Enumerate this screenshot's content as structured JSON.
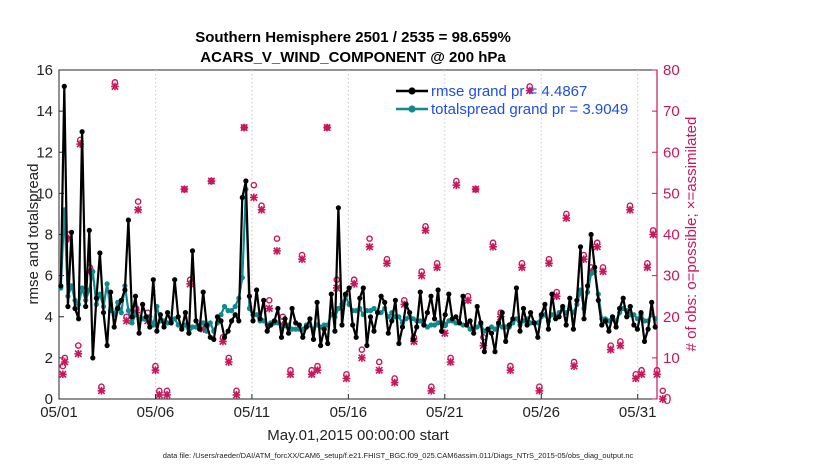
{
  "chart_data": {
    "type": "line",
    "title": "Southern Hemisphere 2501 / 2535 = 98.659%",
    "subtitle": "ACARS_V_WIND_COMPONENT @ 200 hPa",
    "xlabel": "May.01,2015 00:00:00 start",
    "ylabel": "rmse and totalspread",
    "ylabel_right": "# of obs: o=possible; ×=assimilated",
    "footnote": "data file: /Users/raeder/DAI/ATM_forcXX/CAM6_setup/f.e21.FHIST_BGC.f09_025.CAM6assim.011/Diags_NTrS_2015-05/obs_diag_output.nc",
    "x_ticks": [
      "05/01",
      "05/06",
      "05/11",
      "05/16",
      "05/21",
      "05/26",
      "05/31"
    ],
    "xlim": [
      0,
      31
    ],
    "ylim": [
      0,
      16
    ],
    "y_ticks": [
      "0",
      "2",
      "4",
      "6",
      "8",
      "10",
      "12",
      "14",
      "16"
    ],
    "ylim_right": [
      0,
      80
    ],
    "y_ticks_right": [
      "0",
      "10",
      "20",
      "30",
      "40",
      "50",
      "60",
      "70",
      "80"
    ],
    "colors": {
      "rmse": "#000000",
      "spread": "#0f8a8e",
      "obs": "#c8175d",
      "legend_text": "#1f4fe0"
    },
    "series": [
      {
        "name": "rmse grand pr = 4.4867",
        "values": [
          5.5,
          15.2,
          4.5,
          8.1,
          4.4,
          3.9,
          13.0,
          4.5,
          8.2,
          2.0,
          4.9,
          7.1,
          4.2,
          2.6,
          5.2,
          3.5,
          4.4,
          4.8,
          5.3,
          8.7,
          4.0,
          5.0,
          3.2,
          4.6,
          4.0,
          3.5,
          5.8,
          3.3,
          4.1,
          3.5,
          4.2,
          3.7,
          5.8,
          4.0,
          3.4,
          4.2,
          3.2,
          7.2,
          3.8,
          3.4,
          5.2,
          3.6,
          3.0,
          2.9,
          4.0,
          3.8,
          3.0,
          3.3,
          3.8,
          4.1,
          3.8,
          9.8,
          10.6,
          5.0,
          3.8,
          5.3,
          3.9,
          4.8,
          3.3,
          3.6,
          3.8,
          4.4,
          3.0,
          3.9,
          3.2,
          4.4,
          3.7,
          3.6,
          3.0,
          3.5,
          3.9,
          2.9,
          4.7,
          2.6,
          3.4,
          2.7,
          5.1,
          3.3,
          9.3,
          3.6,
          5.1,
          5.4,
          3.6,
          3.0,
          4.9,
          5.4,
          2.6,
          4.0,
          3.3,
          4.2,
          5.0,
          4.7,
          3.2,
          3.8,
          4.8,
          2.7,
          3.5,
          4.6,
          4.2,
          2.9,
          3.5,
          5.2,
          3.6,
          4.2,
          5.0,
          3.9,
          5.3,
          3.3,
          4.1,
          5.1,
          3.9,
          4.0,
          3.7,
          5.0,
          3.6,
          3.8,
          3.2,
          4.5,
          3.7,
          2.3,
          3.4,
          3.2,
          2.3,
          3.7,
          4.2,
          2.8,
          3.6,
          3.9,
          5.4,
          3.3,
          4.4,
          3.6,
          4.2,
          3.7,
          3.0,
          4.1,
          4.6,
          3.4,
          5.1,
          3.9,
          4.0,
          4.5,
          3.6,
          4.9,
          3.4,
          4.8,
          7.4,
          3.9,
          5.5,
          8.0,
          6.4,
          4.8,
          3.6,
          3.8,
          3.3,
          4.0,
          3.5,
          4.4,
          4.9,
          4.0,
          4.5,
          3.6,
          3.4,
          4.2,
          2.8,
          3.4,
          4.7,
          3.5
        ]
      },
      {
        "name": "totalspread grand pr = 3.9049",
        "values": [
          5.4,
          9.2,
          5.0,
          5.5,
          4.8,
          4.6,
          5.4,
          4.8,
          5.3,
          6.2,
          4.6,
          5.1,
          4.5,
          5.6,
          4.3,
          4.1,
          4.7,
          4.2,
          5.5,
          4.3,
          3.7,
          4.1,
          3.9,
          3.9,
          3.9,
          4.0,
          3.6,
          4.5,
          3.8,
          3.8,
          3.7,
          3.7,
          3.9,
          3.6,
          3.5,
          3.6,
          3.2,
          3.5,
          3.5,
          3.6,
          3.7,
          3.3,
          3.7,
          3.3,
          3.7,
          4.1,
          4.5,
          4.3,
          4.3,
          4.5,
          4.9,
          5.9,
          10.2,
          4.4,
          4.1,
          4.1,
          3.8,
          3.8,
          3.6,
          3.7,
          3.7,
          3.7,
          3.5,
          3.6,
          3.6,
          3.4,
          3.4,
          3.4,
          3.4,
          3.6,
          3.6,
          3.4,
          3.6,
          3.5,
          3.6,
          3.6,
          4.1,
          4.0,
          4.4,
          4.6,
          5.0,
          4.6,
          4.3,
          4.3,
          4.4,
          4.1,
          4.3,
          4.3,
          4.4,
          4.2,
          4.2,
          4.4,
          4.0,
          4.2,
          4.0,
          4.0,
          3.7,
          3.9,
          4.0,
          3.9,
          3.8,
          3.8,
          3.6,
          3.5,
          3.6,
          3.6,
          3.7,
          3.7,
          3.6,
          3.8,
          3.8,
          3.7,
          3.7,
          3.6,
          3.6,
          3.4,
          3.4,
          3.5,
          3.6,
          3.3,
          3.4,
          3.5,
          3.4,
          3.6,
          3.5,
          3.5,
          3.5,
          3.7,
          3.9,
          3.6,
          3.8,
          3.9,
          3.7,
          3.7,
          3.7,
          4.0,
          4.1,
          3.8,
          4.1,
          4.0,
          4.2,
          4.4,
          4.2,
          4.4,
          4.2,
          4.6,
          5.3,
          4.4,
          5.2,
          6.1,
          6.2,
          5.1,
          3.9,
          3.9,
          3.8,
          4.0,
          3.8,
          4.2,
          4.4,
          4.3,
          4.1,
          4.1,
          3.9,
          4.1,
          3.8,
          3.8,
          4.1,
          3.9
        ]
      }
    ],
    "obs_possible": [
      [
        0.2,
        8
      ],
      [
        0.3,
        10
      ],
      [
        0.5,
        40
      ],
      [
        1.0,
        13
      ],
      [
        1.1,
        63
      ],
      [
        1.6,
        32
      ],
      [
        2.2,
        3
      ],
      [
        2.9,
        77
      ],
      [
        3.5,
        20
      ],
      [
        4.0,
        22
      ],
      [
        4.1,
        48
      ],
      [
        4.6,
        21
      ],
      [
        5.0,
        8
      ],
      [
        5.2,
        2
      ],
      [
        5.6,
        2
      ],
      [
        6.5,
        51
      ],
      [
        6.8,
        29
      ],
      [
        7.5,
        18
      ],
      [
        7.9,
        53
      ],
      [
        8.5,
        15
      ],
      [
        8.8,
        10
      ],
      [
        9.2,
        2
      ],
      [
        9.6,
        66
      ],
      [
        10.1,
        52
      ],
      [
        10.5,
        47
      ],
      [
        10.9,
        24
      ],
      [
        11.3,
        39
      ],
      [
        11.6,
        20
      ],
      [
        12.0,
        7
      ],
      [
        12.6,
        35
      ],
      [
        13.1,
        7
      ],
      [
        13.4,
        8
      ],
      [
        13.9,
        66
      ],
      [
        14.4,
        29
      ],
      [
        14.9,
        6
      ],
      [
        15.3,
        29
      ],
      [
        15.7,
        12
      ],
      [
        16.1,
        39
      ],
      [
        16.6,
        9
      ],
      [
        17.0,
        34
      ],
      [
        17.4,
        5
      ],
      [
        17.9,
        24
      ],
      [
        18.4,
        15
      ],
      [
        18.8,
        31
      ],
      [
        19.0,
        42
      ],
      [
        19.3,
        3
      ],
      [
        19.6,
        33
      ],
      [
        20.0,
        18
      ],
      [
        20.3,
        10
      ],
      [
        20.6,
        53
      ],
      [
        21.2,
        25
      ],
      [
        21.6,
        51
      ],
      [
        22.0,
        15
      ],
      [
        22.5,
        38
      ],
      [
        22.9,
        21
      ],
      [
        23.4,
        8
      ],
      [
        24.0,
        33
      ],
      [
        24.4,
        76
      ],
      [
        24.9,
        3
      ],
      [
        25.4,
        34
      ],
      [
        25.8,
        26
      ],
      [
        26.3,
        45
      ],
      [
        26.7,
        9
      ],
      [
        27.2,
        35
      ],
      [
        27.6,
        32
      ],
      [
        27.9,
        38
      ],
      [
        28.2,
        32
      ],
      [
        28.6,
        13
      ],
      [
        29.1,
        14
      ],
      [
        29.6,
        47
      ],
      [
        29.9,
        6
      ],
      [
        30.2,
        7
      ],
      [
        30.5,
        33
      ],
      [
        30.8,
        41
      ],
      [
        31.0,
        7
      ],
      [
        31.3,
        2
      ]
    ],
    "obs_assimilated": [
      [
        0.2,
        6
      ],
      [
        0.3,
        9
      ],
      [
        0.5,
        39
      ],
      [
        1.0,
        11
      ],
      [
        1.1,
        62
      ],
      [
        1.6,
        31
      ],
      [
        2.2,
        2
      ],
      [
        2.9,
        76
      ],
      [
        3.5,
        19
      ],
      [
        4.0,
        21
      ],
      [
        4.1,
        46
      ],
      [
        4.6,
        19
      ],
      [
        5.0,
        7
      ],
      [
        5.2,
        1
      ],
      [
        5.6,
        1
      ],
      [
        6.5,
        51
      ],
      [
        6.8,
        28
      ],
      [
        7.5,
        17
      ],
      [
        7.9,
        53
      ],
      [
        8.5,
        14
      ],
      [
        8.8,
        9
      ],
      [
        9.2,
        1
      ],
      [
        9.6,
        66
      ],
      [
        10.1,
        49
      ],
      [
        10.5,
        46
      ],
      [
        10.9,
        22
      ],
      [
        11.3,
        36
      ],
      [
        11.6,
        18
      ],
      [
        12.0,
        6
      ],
      [
        12.6,
        34
      ],
      [
        13.1,
        6
      ],
      [
        13.4,
        7
      ],
      [
        13.9,
        66
      ],
      [
        14.4,
        27
      ],
      [
        14.9,
        5
      ],
      [
        15.3,
        28
      ],
      [
        15.7,
        10
      ],
      [
        16.1,
        37
      ],
      [
        16.6,
        7
      ],
      [
        17.0,
        33
      ],
      [
        17.4,
        4
      ],
      [
        17.9,
        23
      ],
      [
        18.4,
        14
      ],
      [
        18.8,
        30
      ],
      [
        19.0,
        41
      ],
      [
        19.3,
        2
      ],
      [
        19.6,
        32
      ],
      [
        20.0,
        16
      ],
      [
        20.3,
        9
      ],
      [
        20.6,
        52
      ],
      [
        21.2,
        24
      ],
      [
        21.6,
        51
      ],
      [
        22.0,
        13
      ],
      [
        22.5,
        37
      ],
      [
        22.9,
        20
      ],
      [
        23.4,
        7
      ],
      [
        24.0,
        32
      ],
      [
        24.4,
        75
      ],
      [
        24.9,
        2
      ],
      [
        25.4,
        33
      ],
      [
        25.8,
        25
      ],
      [
        26.3,
        44
      ],
      [
        26.7,
        8
      ],
      [
        27.2,
        34
      ],
      [
        27.6,
        31
      ],
      [
        27.9,
        37
      ],
      [
        28.2,
        31
      ],
      [
        28.6,
        12
      ],
      [
        29.1,
        13
      ],
      [
        29.6,
        46
      ],
      [
        29.9,
        5
      ],
      [
        30.2,
        6
      ],
      [
        30.5,
        32
      ],
      [
        30.8,
        40
      ],
      [
        31.0,
        6
      ],
      [
        31.3,
        0
      ]
    ]
  }
}
